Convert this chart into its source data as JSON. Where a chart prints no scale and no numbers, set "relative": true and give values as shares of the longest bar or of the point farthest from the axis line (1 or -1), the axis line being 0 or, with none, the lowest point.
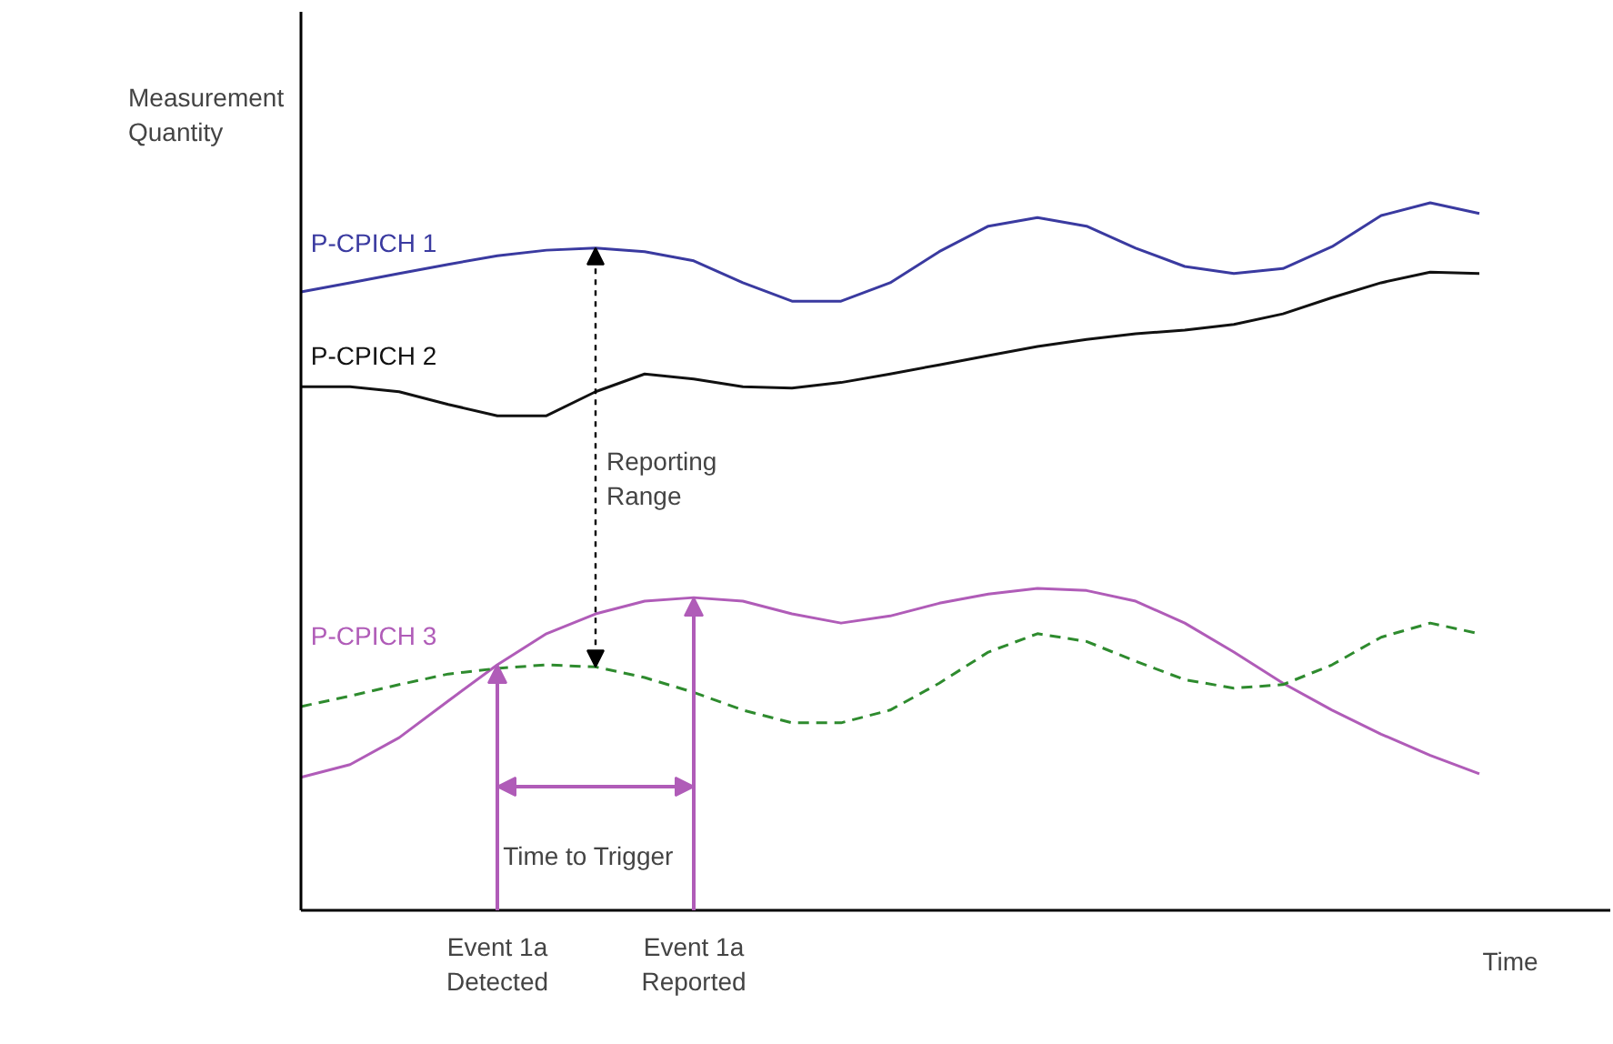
{
  "chart_data": {
    "type": "line",
    "relative": true,
    "grid": false,
    "marker": "none",
    "ylabel": "Measurement Quantity",
    "xlabel": "Time",
    "categories": [
      null,
      null,
      null,
      null,
      null,
      null,
      null,
      null,
      null,
      null,
      null,
      null,
      null,
      null,
      null,
      null,
      null,
      null,
      null,
      null,
      null,
      null,
      null,
      null,
      null
    ],
    "series": [
      {
        "name": "P-CPICH 1",
        "color": "#3a3aa0",
        "line_style": "solid",
        "values": [
          0.874,
          0.887,
          0.9,
          0.913,
          0.925,
          0.933,
          0.936,
          0.931,
          0.918,
          0.887,
          0.861,
          0.861,
          0.887,
          0.931,
          0.967,
          0.979,
          0.967,
          0.936,
          0.91,
          0.9,
          0.907,
          0.938,
          0.982,
          1.0,
          0.985
        ]
      },
      {
        "name": "P-CPICH 2",
        "color": "#111111",
        "line_style": "solid",
        "values": [
          0.74,
          0.74,
          0.733,
          0.715,
          0.699,
          0.699,
          0.733,
          0.758,
          0.751,
          0.74,
          0.738,
          0.746,
          0.758,
          0.771,
          0.784,
          0.797,
          0.807,
          0.815,
          0.82,
          0.828,
          0.843,
          0.866,
          0.887,
          0.902,
          0.9
        ]
      },
      {
        "name": "P-CPICH 3",
        "color": "#b05cb8",
        "line_style": "solid",
        "values": [
          0.188,
          0.206,
          0.244,
          0.296,
          0.347,
          0.391,
          0.419,
          0.437,
          0.442,
          0.437,
          0.419,
          0.406,
          0.416,
          0.434,
          0.447,
          0.455,
          0.452,
          0.437,
          0.406,
          0.365,
          0.321,
          0.283,
          0.249,
          0.219,
          0.193
        ]
      },
      {
        "color": "#2e8b2e",
        "line_style": "dashed",
        "values": [
          0.288,
          0.303,
          0.319,
          0.334,
          0.342,
          0.347,
          0.344,
          0.329,
          0.308,
          0.283,
          0.265,
          0.265,
          0.283,
          0.321,
          0.365,
          0.391,
          0.38,
          0.352,
          0.326,
          0.314,
          0.319,
          0.347,
          0.386,
          0.406,
          0.391
        ]
      }
    ],
    "annotations": [
      "Reporting Range",
      "Time to Trigger",
      "Event 1a Detected",
      "Event 1a Reported"
    ]
  }
}
